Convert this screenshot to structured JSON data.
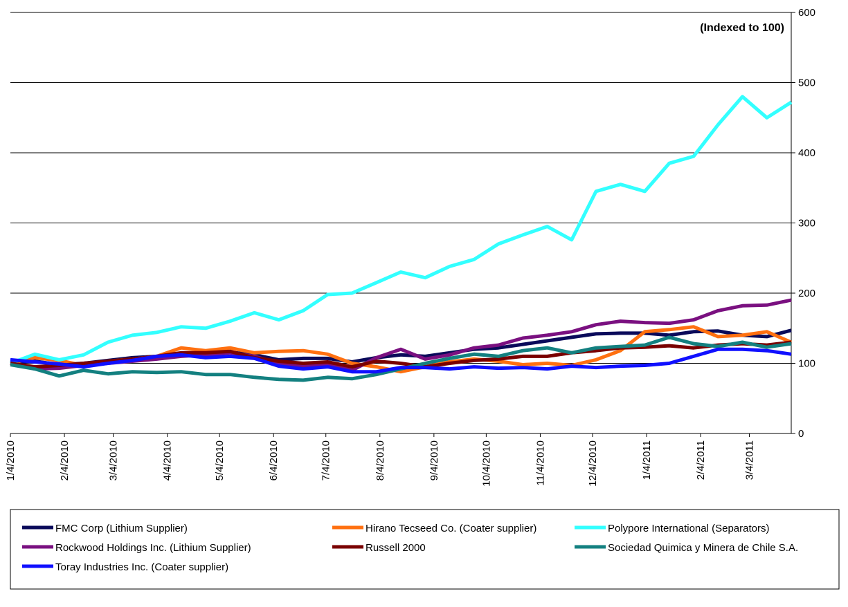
{
  "chart_data": {
    "type": "line",
    "annotation": "(Indexed to 100)",
    "x": [
      "1/4/2010",
      "1/18/2010",
      "2/1/2010",
      "2/15/2010",
      "3/1/2010",
      "3/15/2010",
      "3/29/2010",
      "4/12/2010",
      "4/26/2010",
      "5/10/2010",
      "5/24/2010",
      "6/7/2010",
      "6/21/2010",
      "7/5/2010",
      "7/19/2010",
      "8/2/2010",
      "8/16/2010",
      "8/30/2010",
      "9/13/2010",
      "9/27/2010",
      "10/11/2010",
      "10/25/2010",
      "11/8/2010",
      "11/22/2010",
      "12/6/2010",
      "12/20/2010",
      "1/3/2011",
      "1/17/2011",
      "1/31/2011",
      "2/14/2011",
      "2/28/2011",
      "3/14/2011",
      "3/28/2011"
    ],
    "xlim": [
      "1/4/2010",
      "3/28/2011"
    ],
    "xticks": [
      "1/4/2010",
      "2/4/2010",
      "3/4/2010",
      "4/4/2010",
      "5/4/2010",
      "6/4/2010",
      "7/4/2010",
      "8/4/2010",
      "9/4/2010",
      "10/4/2010",
      "11/4/2010",
      "12/4/2010",
      "1/4/2011",
      "2/4/2011",
      "3/4/2011"
    ],
    "ylim": [
      0,
      600
    ],
    "yticks": [
      0,
      100,
      200,
      300,
      400,
      500,
      600
    ],
    "grid": true,
    "legend": "bottom",
    "series": [
      {
        "name": "FMC Corp (Lithium Supplier)",
        "color": "#0a0a5a",
        "values": [
          100,
          103,
          98,
          100,
          104,
          108,
          110,
          112,
          113,
          116,
          112,
          105,
          107,
          107,
          102,
          108,
          112,
          110,
          115,
          120,
          122,
          127,
          132,
          137,
          142,
          143,
          143,
          140,
          145,
          146,
          140,
          138,
          147
        ]
      },
      {
        "name": "Hirano Tecseed Co. (Coater supplier)",
        "color": "#ff7010",
        "values": [
          100,
          108,
          104,
          97,
          103,
          106,
          110,
          122,
          118,
          122,
          115,
          117,
          118,
          113,
          100,
          95,
          88,
          95,
          102,
          106,
          103,
          98,
          100,
          97,
          105,
          118,
          145,
          148,
          152,
          138,
          140,
          145,
          130
        ]
      },
      {
        "name": "Polypore International (Separators)",
        "color": "#33ffff",
        "values": [
          100,
          113,
          105,
          112,
          130,
          140,
          144,
          152,
          150,
          160,
          172,
          162,
          175,
          198,
          200,
          215,
          230,
          222,
          238,
          248,
          270,
          283,
          295,
          276,
          345,
          355,
          345,
          385,
          395,
          440,
          480,
          450,
          472
        ]
      },
      {
        "name": "Rockwood Holdings Inc. (Lithium Supplier)",
        "color": "#7a1080",
        "values": [
          100,
          92,
          93,
          97,
          100,
          103,
          106,
          110,
          112,
          115,
          110,
          100,
          96,
          98,
          90,
          108,
          120,
          106,
          112,
          122,
          126,
          136,
          140,
          145,
          155,
          160,
          158,
          157,
          162,
          175,
          182,
          183,
          190
        ]
      },
      {
        "name": "Russell 2000",
        "color": "#7a0000",
        "values": [
          100,
          95,
          97,
          100,
          103,
          106,
          110,
          115,
          115,
          117,
          108,
          103,
          100,
          102,
          95,
          103,
          100,
          95,
          100,
          104,
          106,
          110,
          110,
          115,
          118,
          122,
          123,
          125,
          122,
          126,
          128,
          126,
          130
        ]
      },
      {
        "name": "Sociedad Quimica y Minera de Chile S.A.",
        "color": "#138080",
        "values": [
          98,
          92,
          82,
          90,
          85,
          88,
          87,
          88,
          84,
          84,
          80,
          77,
          76,
          80,
          78,
          84,
          92,
          100,
          107,
          113,
          110,
          118,
          122,
          115,
          122,
          124,
          126,
          137,
          128,
          124,
          130,
          123,
          128
        ]
      },
      {
        "name": "Toray Industries Inc. (Coater supplier)",
        "color": "#1010ff",
        "values": [
          105,
          102,
          99,
          95,
          100,
          104,
          110,
          112,
          108,
          110,
          107,
          96,
          92,
          95,
          88,
          88,
          94,
          94,
          92,
          95,
          93,
          94,
          92,
          96,
          94,
          96,
          97,
          100,
          110,
          120,
          120,
          118,
          113
        ]
      }
    ]
  }
}
